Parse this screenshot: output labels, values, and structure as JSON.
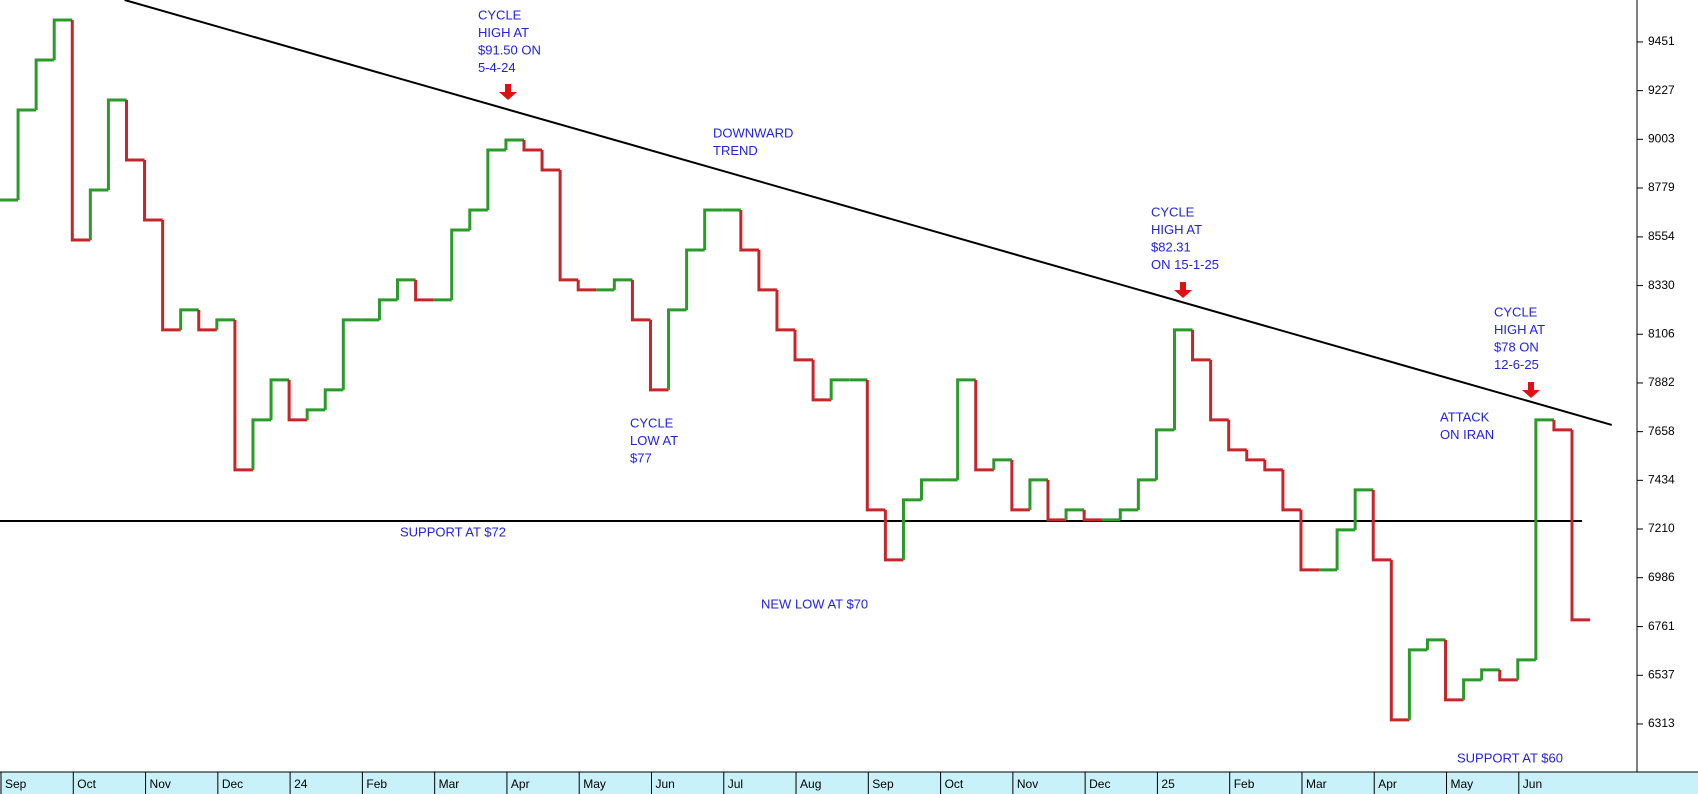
{
  "chart_data": {
    "type": "step",
    "up_color": "#2a9a2a",
    "down_color": "#c4262a",
    "categories": [
      "Sep",
      null,
      null,
      null,
      "Oct",
      null,
      null,
      null,
      "Nov",
      null,
      null,
      null,
      "Dec",
      null,
      null,
      null,
      "24",
      null,
      null,
      null,
      "Feb",
      null,
      null,
      null,
      "Mar",
      null,
      null,
      null,
      "Apr",
      null,
      null,
      null,
      "May",
      null,
      null,
      null,
      "Jun",
      null,
      null,
      null,
      "Jul",
      null,
      null,
      null,
      "Aug",
      null,
      null,
      null,
      "Sep",
      null,
      null,
      null,
      "Oct",
      null,
      null,
      null,
      "Nov",
      null,
      null,
      null,
      "Dec",
      null,
      null,
      null,
      "25",
      null,
      null,
      null,
      "Feb",
      null,
      null,
      null,
      "Mar",
      null,
      null,
      null,
      "Apr",
      null,
      null,
      null,
      "May",
      null,
      null,
      null,
      "Jun",
      null,
      null,
      null
    ],
    "values": [
      8724,
      9138,
      9368,
      9552,
      8540,
      8770,
      9184,
      8908,
      8632,
      8126,
      8218,
      8126,
      8172,
      7482,
      7712,
      7896,
      7712,
      7758,
      7850,
      8172,
      8172,
      8264,
      8356,
      8264,
      8264,
      8586,
      8678,
      8954,
      9000,
      8954,
      8862,
      8356,
      8310,
      8310,
      8356,
      8172,
      7850,
      8218,
      8494,
      8678,
      8678,
      8494,
      8310,
      8126,
      7988,
      7804,
      7896,
      7896,
      7298,
      7068,
      7344,
      7436,
      7436,
      7896,
      7482,
      7528,
      7298,
      7436,
      7252,
      7298,
      7252,
      7252,
      7298,
      7436,
      7666,
      8126,
      7988,
      7712,
      7574,
      7528,
      7482,
      7298,
      7022,
      7022,
      7206,
      7390,
      7068,
      6332,
      6654,
      6700,
      6424,
      6516,
      6562,
      6516,
      6608,
      7712,
      7666,
      6792
    ],
    "ylim": [
      6092,
      9644
    ],
    "yticks": [
      9451,
      9227,
      9003,
      8779,
      8554,
      8330,
      8106,
      7882,
      7658,
      7434,
      7210,
      6986,
      6761,
      6537,
      6313
    ],
    "trend_line": {
      "start": [
        6.9,
        9644
      ],
      "end": [
        89.2,
        7689
      ],
      "color": "#000000"
    },
    "support_line": {
      "value": 7247,
      "color": "#000000"
    },
    "annotations": [
      {
        "lines": [
          "CYCLE",
          "HIGH AT",
          "$91.50 ON",
          "5-4-24"
        ]
      },
      {
        "lines": [
          "DOWNWARD",
          "TREND"
        ]
      },
      {
        "lines": [
          "CYCLE",
          "HIGH AT",
          "$82.31",
          "ON 15-1-25"
        ]
      },
      {
        "lines": [
          "CYCLE",
          "HIGH AT",
          "$78 ON",
          "12-6-25"
        ]
      },
      {
        "lines": [
          "ATTACK",
          "ON IRAN"
        ]
      },
      {
        "lines": [
          "CYCLE",
          "LOW AT",
          "$77"
        ]
      },
      {
        "lines": [
          "SUPPORT AT $72"
        ]
      },
      {
        "lines": [
          "NEW LOW AT $70"
        ]
      },
      {
        "lines": [
          "SUPPORT AT $60"
        ]
      }
    ]
  }
}
